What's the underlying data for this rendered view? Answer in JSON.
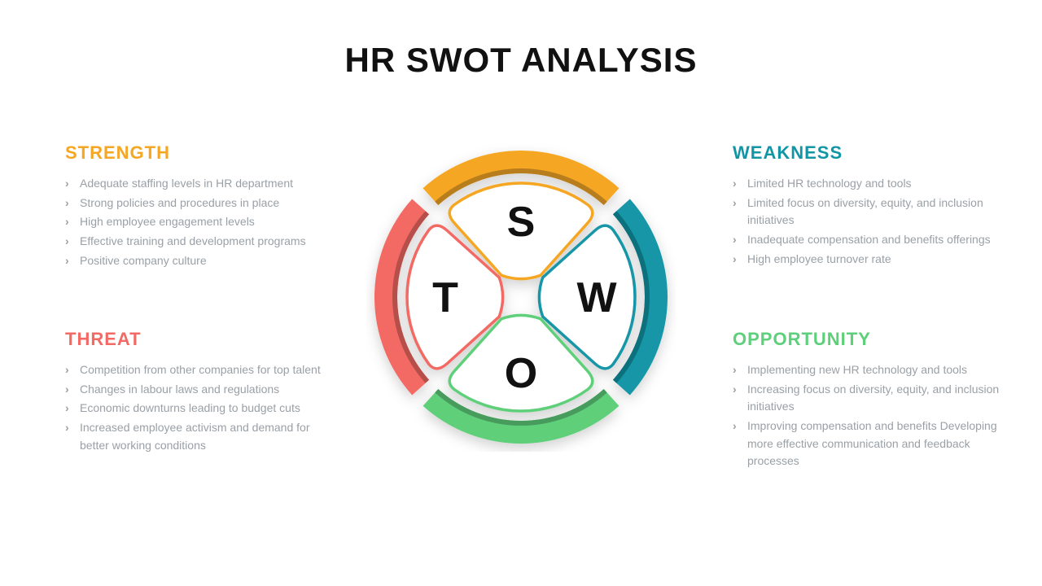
{
  "title": "HR SWOT ANALYSIS",
  "colors": {
    "strength": "#f5a623",
    "weakness": "#1296a6",
    "opportunity": "#5ecf7a",
    "threat": "#f26a63",
    "title_text": "#111111",
    "body_text": "#9aa0a6",
    "background": "#ffffff"
  },
  "diagram": {
    "type": "swot-wheel",
    "outer_radius": 180,
    "rim_width": 28,
    "inner_sector_radius": 140,
    "gap_deg": 6,
    "letter_fontsize": 52,
    "segments": [
      {
        "key": "S",
        "angle_center": -90,
        "color": "#f5a623"
      },
      {
        "key": "W",
        "angle_center": 0,
        "color": "#1296a6"
      },
      {
        "key": "O",
        "angle_center": 90,
        "color": "#5ecf7a"
      },
      {
        "key": "T",
        "angle_center": 180,
        "color": "#f26a63"
      }
    ]
  },
  "quadrants": {
    "strength": {
      "heading": "STRENGTH",
      "heading_color": "#f5a623",
      "items": [
        "Adequate staffing levels in HR department",
        "Strong policies and procedures in place",
        "High employee engagement levels",
        "Effective training and development programs",
        "Positive company culture"
      ]
    },
    "weakness": {
      "heading": "WEAKNESS",
      "heading_color": "#1296a6",
      "items": [
        "Limited HR technology and tools",
        "Limited focus on diversity, equity, and inclusion initiatives",
        "Inadequate compensation and benefits offerings",
        "High employee turnover rate"
      ]
    },
    "opportunity": {
      "heading": "OPPORTUNITY",
      "heading_color": "#5ecf7a",
      "items": [
        "Implementing new HR technology and tools",
        "Increasing focus on diversity, equity, and inclusion initiatives",
        "Improving compensation and benefits Developing more effective communication and feedback processes"
      ]
    },
    "threat": {
      "heading": "THREAT",
      "heading_color": "#f26a63",
      "items": [
        "Competition from other companies for top talent",
        "Changes in labour laws and regulations",
        "Economic downturns leading to budget cuts",
        "Increased employee activism and demand for better working conditions"
      ]
    }
  }
}
